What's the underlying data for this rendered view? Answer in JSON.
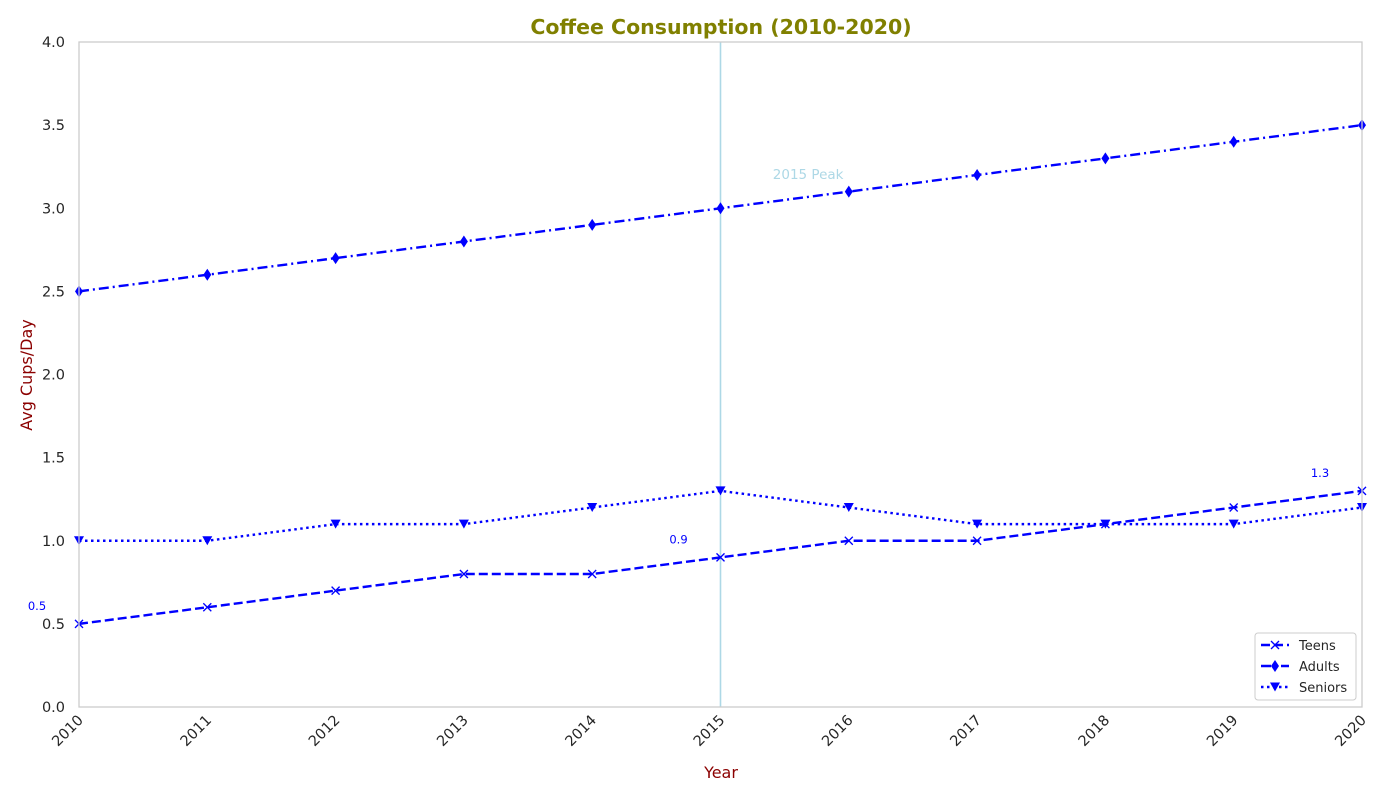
{
  "chart_data": {
    "type": "line",
    "title": "Coffee Consumption (2010-2020)",
    "xlabel": "Year",
    "ylabel": "Avg Cups/Day",
    "x": [
      2010,
      2011,
      2012,
      2013,
      2014,
      2015,
      2016,
      2017,
      2018,
      2019,
      2020
    ],
    "xlim": [
      2010,
      2020
    ],
    "ylim": [
      0,
      4
    ],
    "yticks": [
      "0.0",
      "0.5",
      "1.0",
      "1.5",
      "2.0",
      "2.5",
      "3.0",
      "3.5",
      "4.0"
    ],
    "xticks": [
      "2010",
      "2011",
      "2012",
      "2013",
      "2014",
      "2015",
      "2016",
      "2017",
      "2018",
      "2019",
      "2020"
    ],
    "grid": false,
    "legend_position": "lower-right",
    "series": [
      {
        "name": "Teens",
        "values": [
          0.5,
          0.6,
          0.7,
          0.8,
          0.8,
          0.9,
          1.0,
          1.0,
          1.1,
          1.2,
          1.3
        ],
        "color": "#0000ff",
        "linestyle": "dashed",
        "marker": "x"
      },
      {
        "name": "Adults",
        "values": [
          2.5,
          2.6,
          2.7,
          2.8,
          2.9,
          3.0,
          3.1,
          3.2,
          3.3,
          3.4,
          3.5
        ],
        "color": "#0000ff",
        "linestyle": "dashdot",
        "marker": "thin-diamond"
      },
      {
        "name": "Seniors",
        "values": [
          1.0,
          1.0,
          1.1,
          1.1,
          1.2,
          1.3,
          1.2,
          1.1,
          1.1,
          1.1,
          1.2
        ],
        "color": "#0000ff",
        "linestyle": "dotted",
        "marker": "triangle-down"
      }
    ],
    "data_labels": [
      {
        "text": "0.5",
        "x": 2010,
        "y": 0.5
      },
      {
        "text": "0.9",
        "x": 2015,
        "y": 0.9
      },
      {
        "text": "1.3",
        "x": 2020,
        "y": 1.3
      }
    ],
    "reference_line": {
      "x": 2015,
      "color": "#add8e6"
    },
    "annotation": {
      "text": "2015 Peak",
      "x": 2015.8,
      "y": 3.2,
      "color": "#add8e6"
    },
    "colors": {
      "title": "#808000",
      "axis_label": "#8b0000",
      "data_label": "#0000ff"
    }
  }
}
